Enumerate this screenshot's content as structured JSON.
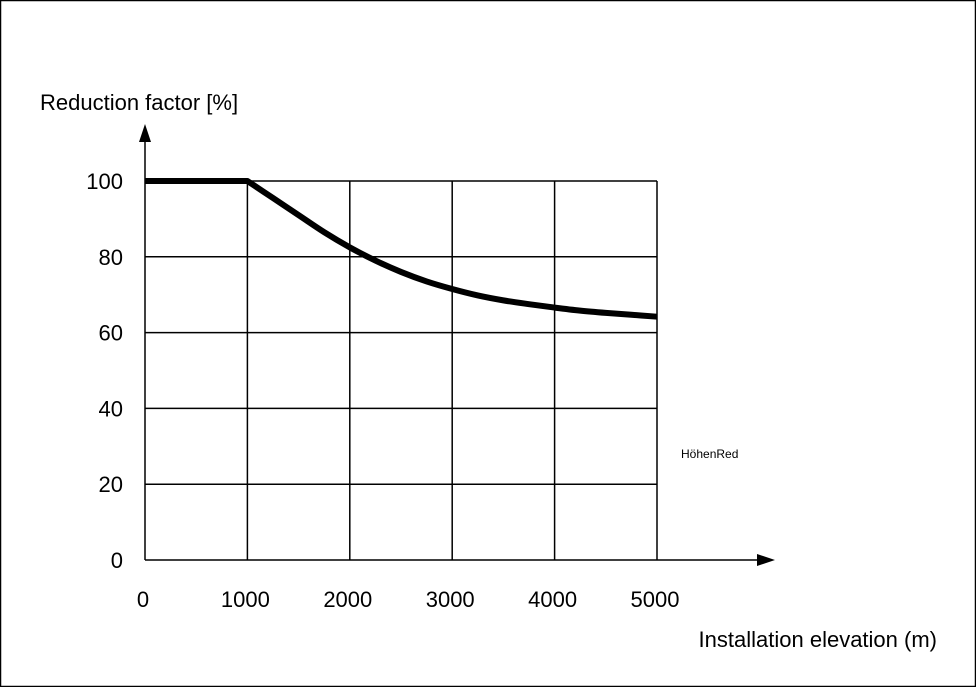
{
  "chart_data": {
    "type": "line",
    "ylabel": "Reduction factor [%]",
    "xlabel": "Installation elevation (m)",
    "annotation": "HöhenRed",
    "xlim": [
      0,
      5000
    ],
    "ylim": [
      0,
      100
    ],
    "x_ticks": [
      "0",
      "1000",
      "2000",
      "3000",
      "4000",
      "5000"
    ],
    "y_ticks": [
      "0",
      "20",
      "40",
      "60",
      "80",
      "100"
    ],
    "grid": true,
    "series": [
      {
        "x": [
          0,
          1000,
          1250,
          1500,
          1750,
          2000,
          2250,
          2500,
          2750,
          3000,
          3250,
          3500,
          3750,
          4000,
          4250,
          4500,
          4750,
          5000
        ],
        "y": [
          100,
          100,
          95.5,
          91,
          86.5,
          82.5,
          79,
          76,
          73.5,
          71.5,
          69.8,
          68.5,
          67.5,
          66.6,
          65.8,
          65.2,
          64.7,
          64.2
        ]
      }
    ]
  }
}
